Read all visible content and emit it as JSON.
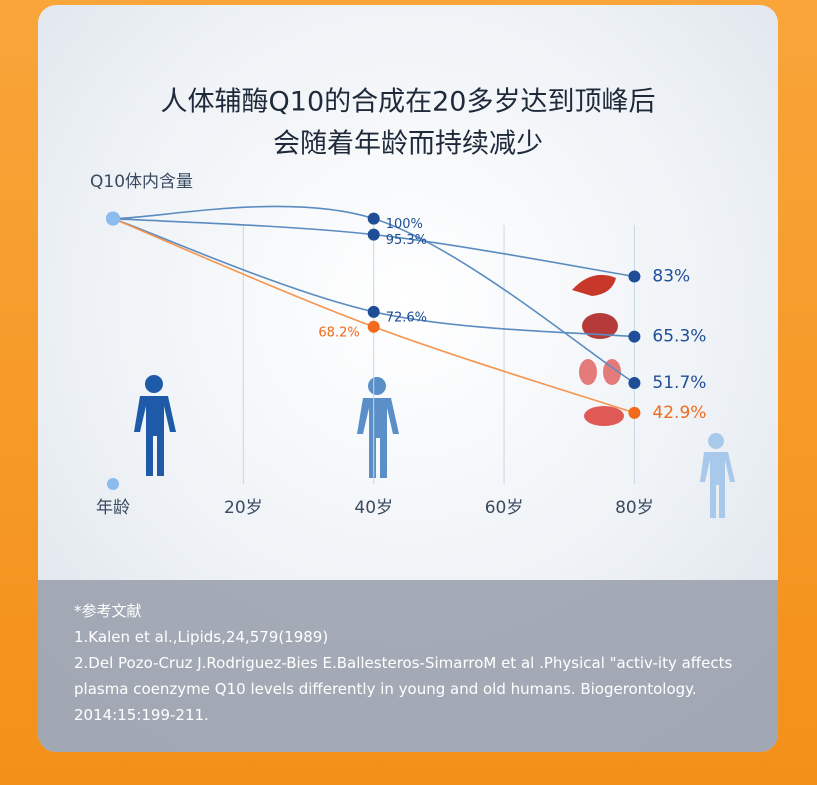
{
  "chart_data": {
    "type": "line",
    "title": [
      "人体辅酶Q10的合成在20多岁达到顶峰后",
      "会随着年龄而持续减少"
    ],
    "y_label": "Q10体内含量",
    "x_label": "年龄",
    "x": [
      0,
      40,
      80
    ],
    "xlim": [
      0,
      85
    ],
    "xticks": [
      {
        "value": 20,
        "label": "20岁"
      },
      {
        "value": 40,
        "label": "40岁"
      },
      {
        "value": 60,
        "label": "60岁"
      },
      {
        "value": 80,
        "label": "80岁"
      }
    ],
    "ylim": [
      22,
      104
    ],
    "series": [
      {
        "color": "#1f4e96",
        "values": [
          100,
          100,
          51.7
        ],
        "value_labels": [
          null,
          "100%",
          "51.7%"
        ]
      },
      {
        "color": "#1f4e96",
        "values": [
          100,
          95.3,
          83
        ],
        "value_labels": [
          null,
          "95.3%",
          "83%"
        ]
      },
      {
        "color": "#1f4e96",
        "values": [
          100,
          72.6,
          65.3
        ],
        "value_labels": [
          null,
          "72.6%",
          "65.3%"
        ]
      },
      {
        "color": "#f26a1b",
        "values": [
          100,
          68.2,
          42.9
        ],
        "value_labels": [
          null,
          "68.2%",
          "42.9%"
        ]
      }
    ]
  },
  "references": {
    "heading": "*参考文献",
    "items": [
      "1.Kalen et al.,Lipids,24,579(1989)",
      "2.Del Pozo-Cruz J.Rodriguez-Bies E.Ballesteros-SimarroM et al .Physical \"activ-ity affects plasma coenzyme Q10 levels differently in young and old humans. Biogerontology. 2014:15:199-211."
    ]
  }
}
